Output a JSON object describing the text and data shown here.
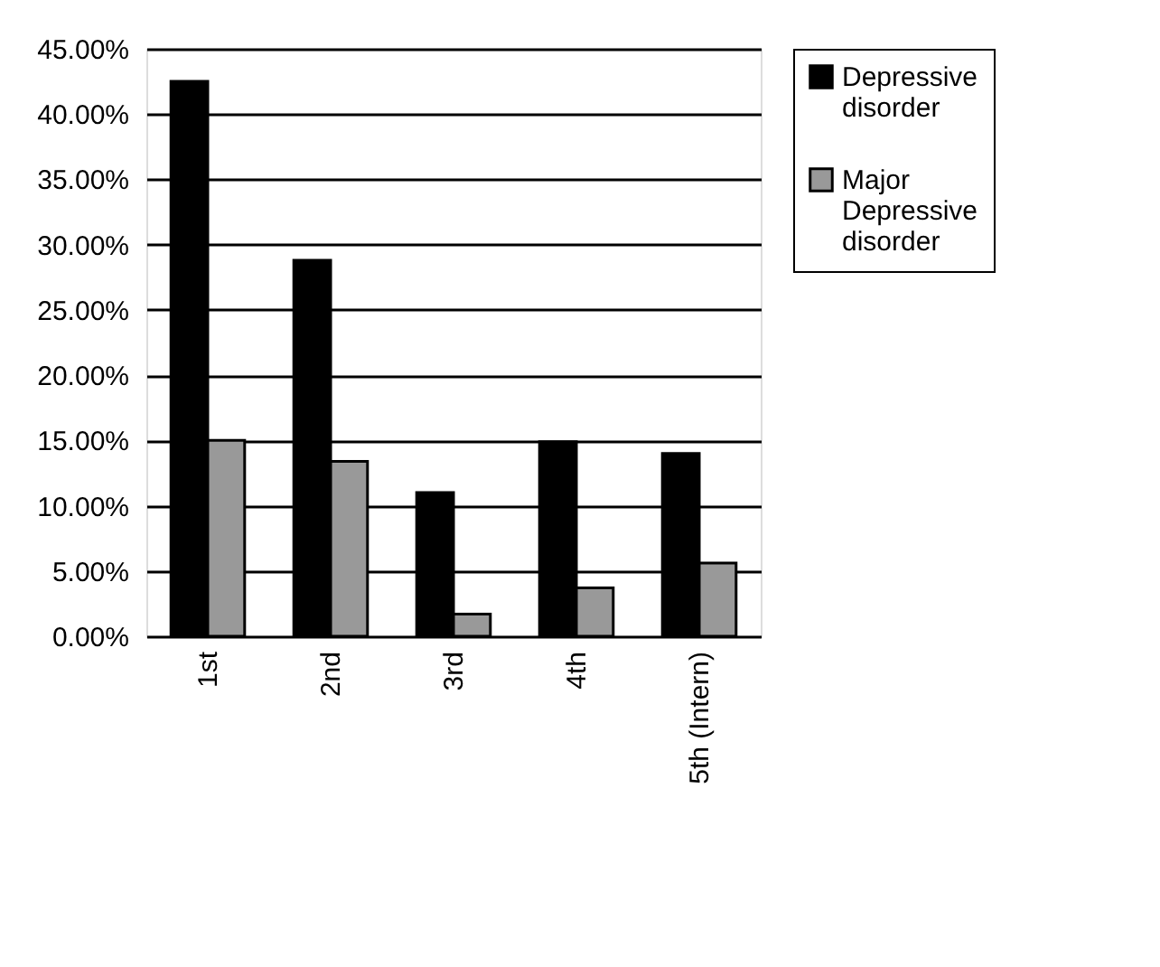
{
  "chart_data": {
    "type": "bar",
    "categories": [
      "1st",
      "2nd",
      "3rd",
      "4th",
      "5th (Intern)"
    ],
    "series": [
      {
        "name": "Depressive disorder",
        "color": "#000000",
        "values": [
          42.5,
          28.8,
          11.0,
          14.9,
          14.0
        ]
      },
      {
        "name": "Major Depressive disorder",
        "color": "#999999",
        "values": [
          15.0,
          13.4,
          1.7,
          3.7,
          5.6
        ]
      }
    ],
    "ylim": [
      0,
      45
    ],
    "yticks": [
      {
        "value": 0,
        "label": "0.00%"
      },
      {
        "value": 5,
        "label": "5.00%"
      },
      {
        "value": 10,
        "label": "10.00%"
      },
      {
        "value": 15,
        "label": "15.00%"
      },
      {
        "value": 20,
        "label": "20.00%"
      },
      {
        "value": 25,
        "label": "25.00%"
      },
      {
        "value": 30,
        "label": "30.00%"
      },
      {
        "value": 35,
        "label": "35.00%"
      },
      {
        "value": 40,
        "label": "40.00%"
      },
      {
        "value": 45,
        "label": "45.00%"
      }
    ],
    "grid": "y",
    "legend": "right"
  }
}
